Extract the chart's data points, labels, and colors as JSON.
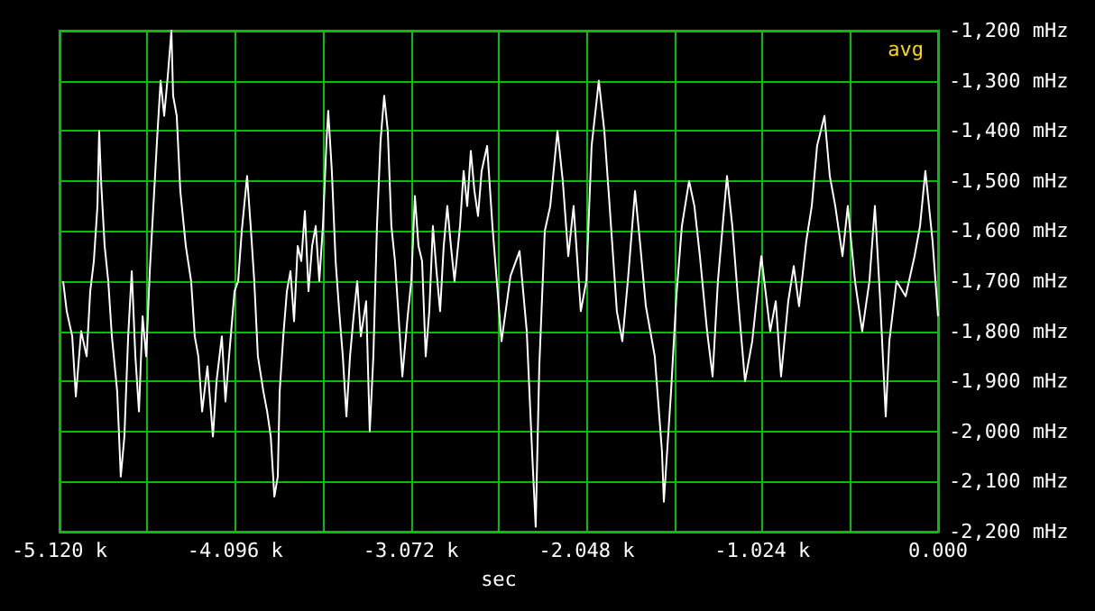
{
  "chart_data": {
    "type": "line",
    "xlabel": "sec",
    "annotations": [
      "avg"
    ],
    "grid": true,
    "marker": "none",
    "line_style": "solid",
    "xlim": [
      -5120,
      0
    ],
    "ylim": [
      -2200,
      -1200
    ],
    "xticks": [
      {
        "value": -5120,
        "label": "-5.120 k"
      },
      {
        "value": -4608,
        "label": null
      },
      {
        "value": -4096,
        "label": "-4.096 k"
      },
      {
        "value": -3584,
        "label": null
      },
      {
        "value": -3072,
        "label": "-3.072 k"
      },
      {
        "value": -2560,
        "label": null
      },
      {
        "value": -2048,
        "label": "-2.048 k"
      },
      {
        "value": -1536,
        "label": null
      },
      {
        "value": -1024,
        "label": "-1.024 k"
      },
      {
        "value": -512,
        "label": null
      },
      {
        "value": 0,
        "label": "0.000"
      }
    ],
    "yticks": [
      {
        "value": -2200,
        "label": "-2,200 mHz"
      },
      {
        "value": -2100,
        "label": "-2,100 mHz"
      },
      {
        "value": -2000,
        "label": "-2,000 mHz"
      },
      {
        "value": -1900,
        "label": "-1,900 mHz"
      },
      {
        "value": -1800,
        "label": "-1,800 mHz"
      },
      {
        "value": -1700,
        "label": "-1,700 mHz"
      },
      {
        "value": -1600,
        "label": "-1,600 mHz"
      },
      {
        "value": -1500,
        "label": "-1,500 mHz"
      },
      {
        "value": -1400,
        "label": "-1,400 mHz"
      },
      {
        "value": -1300,
        "label": "-1,300 mHz"
      },
      {
        "value": -1200,
        "label": "-1,200 mHz"
      }
    ],
    "series": [
      {
        "color": "#ffffff",
        "x": [
          -5099,
          -5078,
          -5046,
          -5025,
          -4994,
          -4962,
          -4941,
          -4920,
          -4899,
          -4889,
          -4878,
          -4857,
          -4836,
          -4815,
          -4784,
          -4763,
          -4742,
          -4720,
          -4699,
          -4678,
          -4657,
          -4636,
          -4615,
          -4594,
          -4573,
          -4552,
          -4531,
          -4510,
          -4489,
          -4468,
          -4458,
          -4437,
          -4416,
          -4384,
          -4353,
          -4332,
          -4311,
          -4289,
          -4258,
          -4226,
          -4205,
          -4174,
          -4153,
          -4132,
          -4100,
          -4079,
          -4058,
          -4027,
          -4006,
          -3985,
          -3964,
          -3932,
          -3910,
          -3889,
          -3868,
          -3848,
          -3837,
          -3816,
          -3795,
          -3774,
          -3753,
          -3732,
          -3711,
          -3690,
          -3669,
          -3648,
          -3627,
          -3606,
          -3585,
          -3564,
          -3554,
          -3533,
          -3511,
          -3490,
          -3469,
          -3448,
          -3427,
          -3406,
          -3385,
          -3364,
          -3333,
          -3312,
          -3291,
          -3270,
          -3249,
          -3228,
          -3207,
          -3186,
          -3165,
          -3144,
          -3122,
          -3091,
          -3070,
          -3049,
          -3028,
          -3007,
          -2986,
          -2965,
          -2944,
          -2923,
          -2902,
          -2881,
          -2860,
          -2839,
          -2818,
          -2786,
          -2765,
          -2744,
          -2723,
          -2702,
          -2681,
          -2660,
          -2628,
          -2597,
          -2544,
          -2492,
          -2439,
          -2397,
          -2366,
          -2345,
          -2324,
          -2292,
          -2260,
          -2218,
          -2187,
          -2155,
          -2124,
          -2082,
          -2050,
          -2019,
          -1977,
          -1945,
          -1914,
          -1872,
          -1840,
          -1808,
          -1766,
          -1735,
          -1703,
          -1651,
          -1609,
          -1598,
          -1556,
          -1525,
          -1493,
          -1451,
          -1420,
          -1388,
          -1346,
          -1314,
          -1283,
          -1230,
          -1199,
          -1167,
          -1125,
          -1083,
          -1030,
          -978,
          -946,
          -915,
          -873,
          -841,
          -810,
          -768,
          -736,
          -705,
          -662,
          -631,
          -599,
          -557,
          -526,
          -484,
          -442,
          -400,
          -368,
          -337,
          -305,
          -284,
          -242,
          -189,
          -137,
          -105,
          -74,
          -32,
          0
        ],
        "values": [
          -1700,
          -1760,
          -1810,
          -1930,
          -1800,
          -1850,
          -1720,
          -1660,
          -1550,
          -1400,
          -1500,
          -1630,
          -1700,
          -1810,
          -1920,
          -2090,
          -2010,
          -1810,
          -1680,
          -1850,
          -1960,
          -1770,
          -1850,
          -1680,
          -1550,
          -1420,
          -1300,
          -1370,
          -1290,
          -1200,
          -1330,
          -1370,
          -1520,
          -1630,
          -1700,
          -1810,
          -1850,
          -1960,
          -1870,
          -2010,
          -1900,
          -1810,
          -1940,
          -1850,
          -1720,
          -1700,
          -1600,
          -1490,
          -1590,
          -1700,
          -1850,
          -1920,
          -1960,
          -2010,
          -2130,
          -2090,
          -1920,
          -1810,
          -1720,
          -1680,
          -1780,
          -1630,
          -1660,
          -1560,
          -1720,
          -1630,
          -1590,
          -1700,
          -1590,
          -1420,
          -1360,
          -1480,
          -1660,
          -1760,
          -1850,
          -1970,
          -1850,
          -1770,
          -1700,
          -1810,
          -1740,
          -2000,
          -1850,
          -1590,
          -1420,
          -1330,
          -1400,
          -1590,
          -1660,
          -1770,
          -1890,
          -1770,
          -1700,
          -1530,
          -1630,
          -1660,
          -1850,
          -1760,
          -1590,
          -1680,
          -1760,
          -1630,
          -1550,
          -1630,
          -1700,
          -1590,
          -1480,
          -1550,
          -1440,
          -1520,
          -1570,
          -1480,
          -1430,
          -1590,
          -1820,
          -1690,
          -1640,
          -1800,
          -2040,
          -2190,
          -1870,
          -1600,
          -1550,
          -1400,
          -1500,
          -1650,
          -1550,
          -1760,
          -1700,
          -1430,
          -1300,
          -1400,
          -1550,
          -1760,
          -1820,
          -1700,
          -1520,
          -1630,
          -1750,
          -1850,
          -2040,
          -2140,
          -1920,
          -1730,
          -1590,
          -1500,
          -1550,
          -1650,
          -1800,
          -1890,
          -1700,
          -1490,
          -1590,
          -1730,
          -1900,
          -1820,
          -1650,
          -1800,
          -1740,
          -1890,
          -1740,
          -1670,
          -1750,
          -1620,
          -1550,
          -1430,
          -1370,
          -1490,
          -1550,
          -1650,
          -1550,
          -1700,
          -1800,
          -1700,
          -1550,
          -1740,
          -1970,
          -1820,
          -1700,
          -1730,
          -1650,
          -1590,
          -1480,
          -1620,
          -1770
        ]
      }
    ]
  }
}
